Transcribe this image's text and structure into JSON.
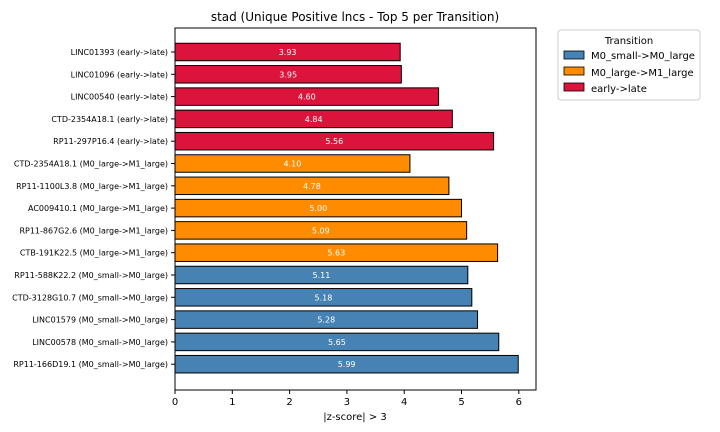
{
  "chart_data": {
    "type": "bar",
    "orientation": "horizontal",
    "title": "stad (Unique Positive lncs - Top 5 per Transition)",
    "xlabel": "|z-score| > 3",
    "ylabel": "",
    "xlim": [
      0,
      6.3
    ],
    "xticks": [
      0,
      1,
      2,
      3,
      4,
      5,
      6
    ],
    "grid": false,
    "legend": {
      "title": "Transition",
      "placement": "outside-top-right",
      "entries": [
        {
          "name": "M0_small->M0_large",
          "color": "#4682b4"
        },
        {
          "name": "M0_large->M1_large",
          "color": "#ff8c00"
        },
        {
          "name": "early->late",
          "color": "#dc143c"
        }
      ]
    },
    "bars": [
      {
        "label": "LINC01393 (early->late)",
        "value": 3.93,
        "value_label": "3.93",
        "group": "early->late"
      },
      {
        "label": "LINC01096 (early->late)",
        "value": 3.95,
        "value_label": "3.95",
        "group": "early->late"
      },
      {
        "label": "LINC00540 (early->late)",
        "value": 4.6,
        "value_label": "4.60",
        "group": "early->late"
      },
      {
        "label": "CTD-2354A18.1 (early->late)",
        "value": 4.84,
        "value_label": "4.84",
        "group": "early->late"
      },
      {
        "label": "RP11-297P16.4 (early->late)",
        "value": 5.56,
        "value_label": "5.56",
        "group": "early->late"
      },
      {
        "label": "CTD-2354A18.1 (M0_large->M1_large)",
        "value": 4.1,
        "value_label": "4.10",
        "group": "M0_large->M1_large"
      },
      {
        "label": "RP11-1100L3.8 (M0_large->M1_large)",
        "value": 4.78,
        "value_label": "4.78",
        "group": "M0_large->M1_large"
      },
      {
        "label": "AC009410.1 (M0_large->M1_large)",
        "value": 5.0,
        "value_label": "5.00",
        "group": "M0_large->M1_large"
      },
      {
        "label": "RP11-867G2.6 (M0_large->M1_large)",
        "value": 5.09,
        "value_label": "5.09",
        "group": "M0_large->M1_large"
      },
      {
        "label": "CTB-191K22.5 (M0_large->M1_large)",
        "value": 5.63,
        "value_label": "5.63",
        "group": "M0_large->M1_large"
      },
      {
        "label": "RP11-588K22.2 (M0_small->M0_large)",
        "value": 5.11,
        "value_label": "5.11",
        "group": "M0_small->M0_large"
      },
      {
        "label": "CTD-3128G10.7 (M0_small->M0_large)",
        "value": 5.18,
        "value_label": "5.18",
        "group": "M0_small->M0_large"
      },
      {
        "label": "LINC01579 (M0_small->M0_large)",
        "value": 5.28,
        "value_label": "5.28",
        "group": "M0_small->M0_large"
      },
      {
        "label": "LINC00578 (M0_small->M0_large)",
        "value": 5.65,
        "value_label": "5.65",
        "group": "M0_small->M0_large"
      },
      {
        "label": "RP11-166D19.1 (M0_small->M0_large)",
        "value": 5.99,
        "value_label": "5.99",
        "group": "M0_small->M0_large"
      }
    ]
  }
}
